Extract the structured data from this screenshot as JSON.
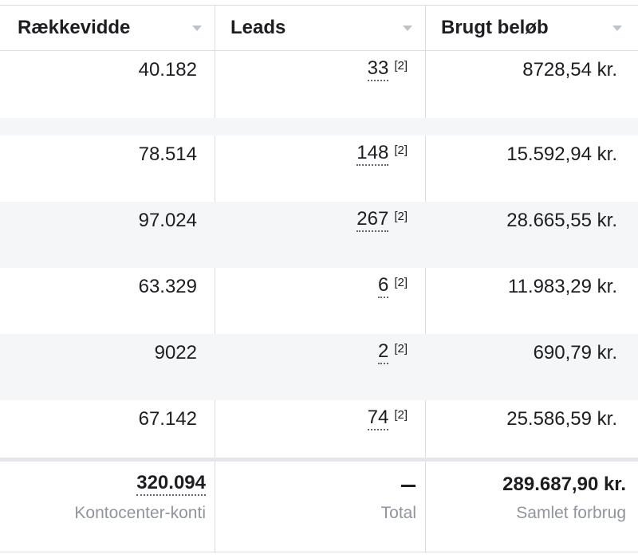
{
  "columns": [
    {
      "label": "Rækkevidde"
    },
    {
      "label": "Leads"
    },
    {
      "label": "Brugt beløb"
    }
  ],
  "rows": [
    {
      "reach": "40.182",
      "leads": "33",
      "leads_ref": "[2]",
      "spent": "8728,54 kr.",
      "alt": false
    },
    {
      "reach": "",
      "leads": "",
      "leads_ref": "",
      "spent": "",
      "alt": true,
      "spacer": true
    },
    {
      "reach": "78.514",
      "leads": "148",
      "leads_ref": "[2]",
      "spent": "15.592,94 kr.",
      "alt": false
    },
    {
      "reach": "97.024",
      "leads": "267",
      "leads_ref": "[2]",
      "spent": "28.665,55 kr.",
      "alt": true
    },
    {
      "reach": "63.329",
      "leads": "6",
      "leads_ref": "[2]",
      "spent": "11.983,29 kr.",
      "alt": false
    },
    {
      "reach": "9022",
      "leads": "2",
      "leads_ref": "[2]",
      "spent": "690,79 kr.",
      "alt": true
    },
    {
      "reach": "67.142",
      "leads": "74",
      "leads_ref": "[2]",
      "spent": "25.586,59 kr.",
      "alt": false
    }
  ],
  "footer": {
    "reach_total": "320.094",
    "reach_sub": "Kontocenter-konti",
    "leads_total": "—",
    "leads_sub": "Total",
    "spent_total": "289.687,90 kr.",
    "spent_sub": "Samlet forbrug"
  },
  "icons": {
    "sort": "caret-down-icon"
  },
  "colors": {
    "row_alt": "#f5f6f7",
    "border": "#dadde1",
    "muted_text": "#90949c"
  }
}
